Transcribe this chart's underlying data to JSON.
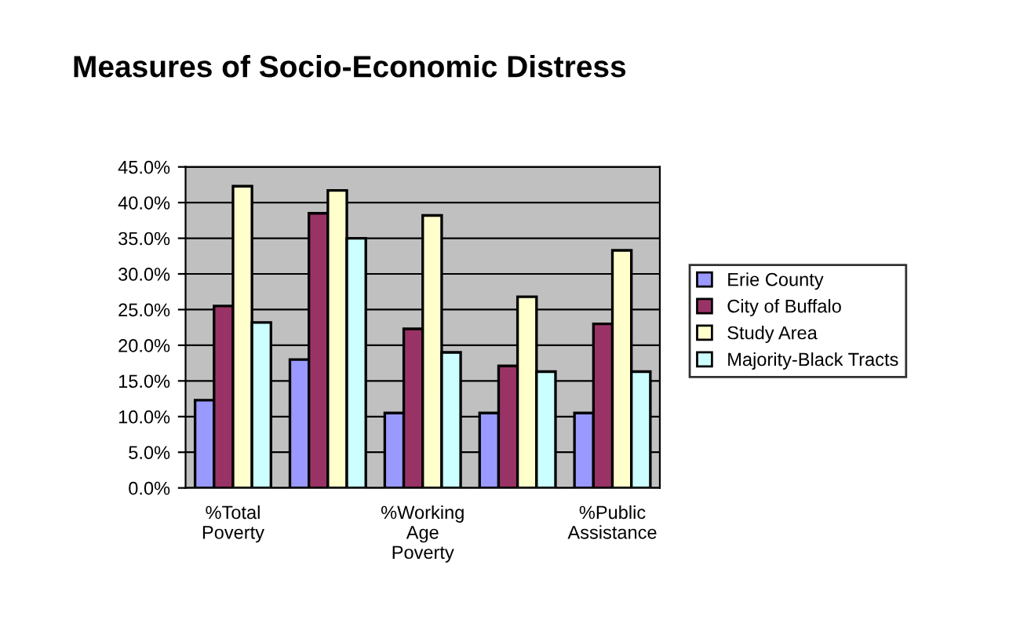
{
  "chart_data": {
    "type": "bar",
    "title": "Measures of Socio-Economic Distress",
    "categories": [
      "%Total Poverty",
      null,
      "%Working Age Poverty",
      null,
      "%Public Assistance"
    ],
    "series": [
      {
        "name": "Erie County",
        "color": "#9999ff",
        "values": [
          12.3,
          18.0,
          10.5,
          10.5,
          10.5
        ]
      },
      {
        "name": "City of Buffalo",
        "color": "#993366",
        "values": [
          25.5,
          38.5,
          22.3,
          17.1,
          23.0
        ]
      },
      {
        "name": "Study Area",
        "color": "#ffffcc",
        "values": [
          42.3,
          41.7,
          38.2,
          26.8,
          33.3
        ]
      },
      {
        "name": "Majority-Black Tracts",
        "color": "#ccffff",
        "values": [
          23.2,
          35.0,
          19.0,
          16.3,
          16.3
        ]
      }
    ],
    "ylim": [
      0,
      45
    ],
    "yticks": [
      {
        "value": 0,
        "label": "0.0%"
      },
      {
        "value": 5,
        "label": "5.0%"
      },
      {
        "value": 10,
        "label": "10.0%"
      },
      {
        "value": 15,
        "label": "15.0%"
      },
      {
        "value": 20,
        "label": "20.0%"
      },
      {
        "value": 25,
        "label": "25.0%"
      },
      {
        "value": 30,
        "label": "30.0%"
      },
      {
        "value": 35,
        "label": "35.0%"
      },
      {
        "value": 40,
        "label": "40.0%"
      },
      {
        "value": 45,
        "label": "45.0%"
      }
    ],
    "grid": "y",
    "legend": "right"
  }
}
